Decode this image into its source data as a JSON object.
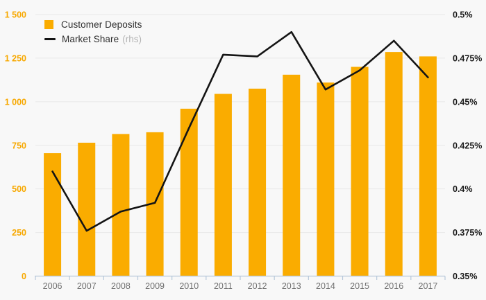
{
  "colors": {
    "background": "#f8f8f8",
    "bar": "#FAAC00",
    "line": "#141414",
    "grid": "#e8e8e8",
    "axis_line": "#b7c8da",
    "left_tick_label": "#F7A800",
    "right_tick_label": "#1a1a1a",
    "year_label": "#6f6f6f",
    "legend_text": "#2d2d2d",
    "legend_suffix": "#b4b4b4"
  },
  "legend": {
    "items": [
      {
        "label": "Customer Deposits",
        "suffix": "",
        "marker": "square"
      },
      {
        "label": "Market Share",
        "suffix": "(rhs)",
        "marker": "line"
      }
    ]
  },
  "chart_data": {
    "type": "combo",
    "title": "",
    "categories": [
      "2006",
      "2007",
      "2008",
      "2009",
      "2010",
      "2011",
      "2012",
      "2013",
      "2014",
      "2015",
      "2016",
      "2017"
    ],
    "series": [
      {
        "name": "Customer Deposits",
        "type": "bar",
        "axis": "left",
        "values": [
          705,
          765,
          815,
          825,
          960,
          1045,
          1075,
          1155,
          1110,
          1200,
          1285,
          1260
        ]
      },
      {
        "name": "Market Share (rhs)",
        "type": "line",
        "axis": "right",
        "values": [
          0.41,
          0.376,
          0.387,
          0.392,
          0.435,
          0.477,
          0.476,
          0.49,
          0.457,
          0.468,
          0.485,
          0.464
        ]
      }
    ],
    "left_axis": {
      "min": 0,
      "max": 1500,
      "step": 250,
      "tick_labels": [
        "0",
        "250",
        "500",
        "750",
        "1 000",
        "1 250",
        "1 500"
      ]
    },
    "right_axis": {
      "min": 0.35,
      "max": 0.5,
      "step": 0.025,
      "tick_labels": [
        "0.35%",
        "0.375%",
        "0.4%",
        "0.425%",
        "0.45%",
        "0.475%",
        "0.5%"
      ]
    },
    "grid": true,
    "legend_position": "top-left"
  }
}
